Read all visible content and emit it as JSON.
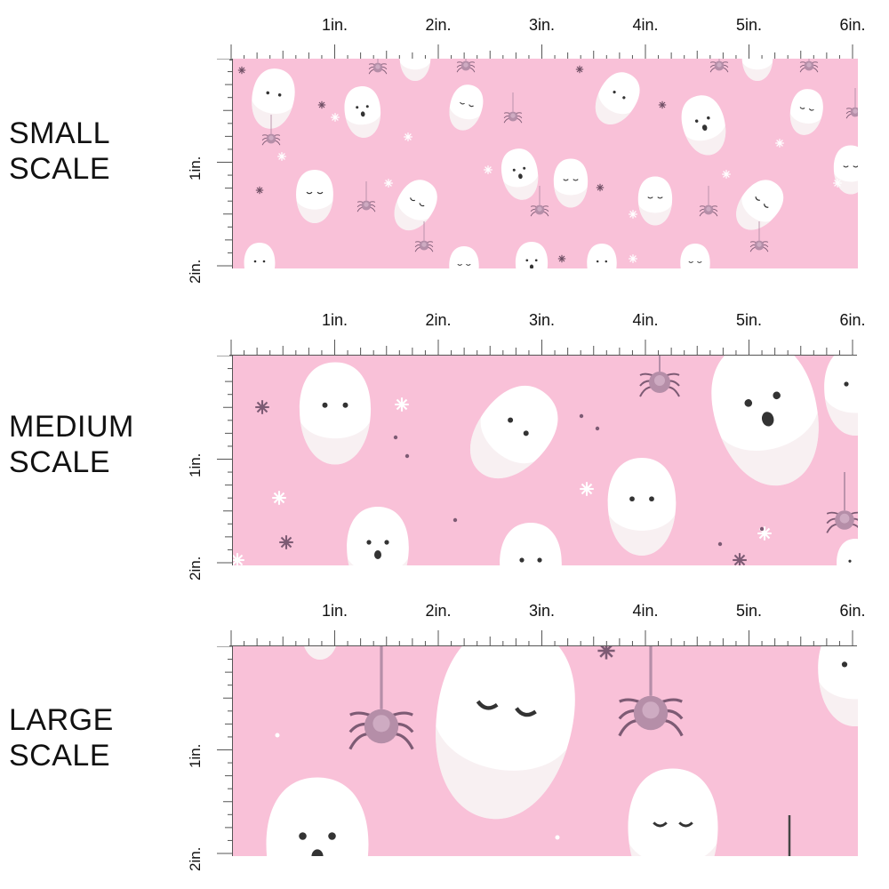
{
  "scales": [
    {
      "name": "small",
      "label_line1": "SMALL",
      "label_line2": "SCALE"
    },
    {
      "name": "medium",
      "label_line1": "MEDIUM",
      "label_line2": "SCALE"
    },
    {
      "name": "large",
      "label_line1": "LARGE",
      "label_line2": "SCALE"
    }
  ],
  "ruler": {
    "horizontal_labels": [
      "1in.",
      "2in.",
      "3in.",
      "4in.",
      "5in.",
      "6in."
    ],
    "vertical_labels": [
      "1in.",
      "2in."
    ]
  },
  "colors": {
    "background": "#f9c1d8",
    "ghost": "#ffffff",
    "ghost_shade": "#f3e6ea",
    "spider": "#b58ea8",
    "accent_dark": "#333333"
  }
}
